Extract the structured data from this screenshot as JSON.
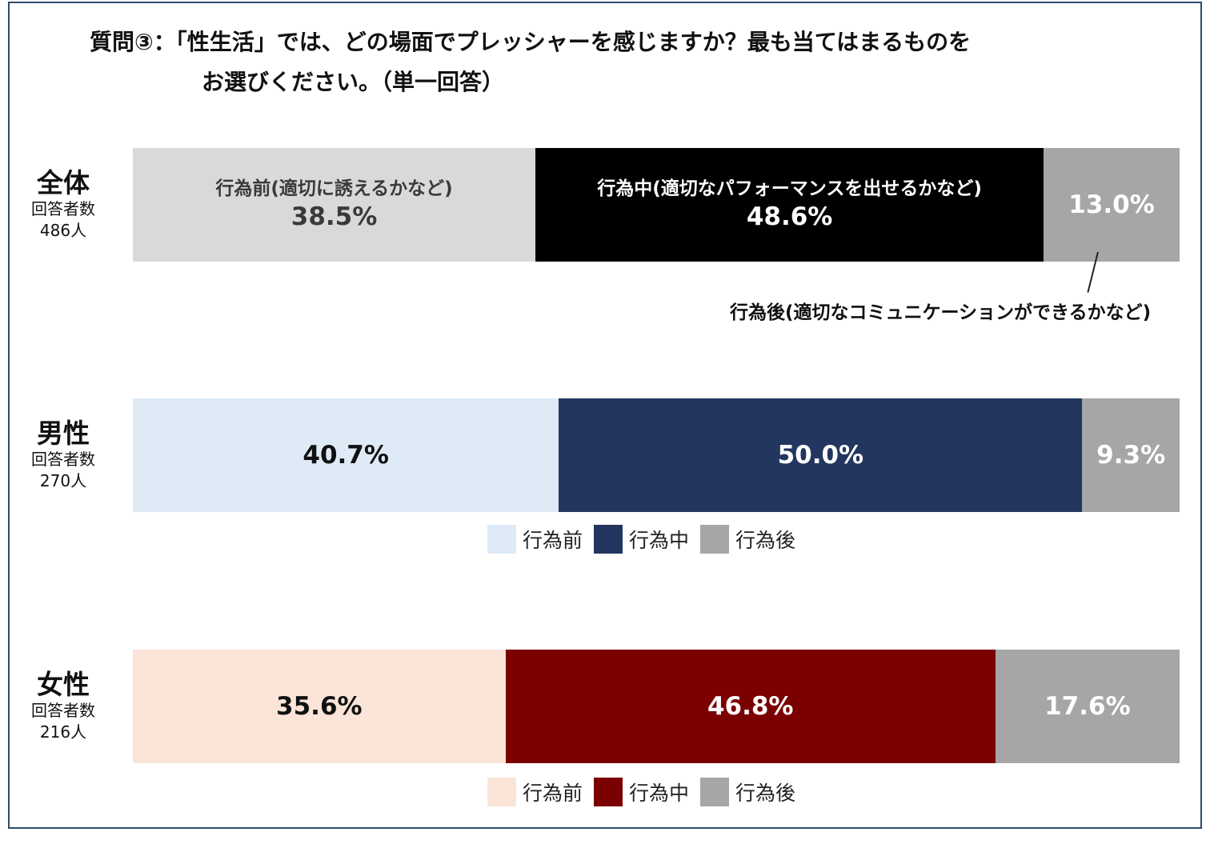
{
  "title": {
    "line1": "質問③：「性生活」では、どの場面でプレッシャーを感じますか？最も当てはまるものを",
    "line2": "お選びください。（単一回答）"
  },
  "chart_data": {
    "type": "bar",
    "orientation": "horizontal-stacked-100",
    "categories": [
      "行為前",
      "行為中",
      "行為後"
    ],
    "category_labels": [
      "行為前(適切に誘えるかなど)",
      "行為中(適切なパフォーマンスを出せるかなど)",
      "行為後(適切なコミュニケーションができるかなど)"
    ],
    "rows": [
      {
        "group": "全体",
        "respondents_label": "回答者数",
        "respondents": "486人",
        "values": [
          38.5,
          48.6,
          13.0
        ],
        "value_labels": [
          "38.5%",
          "48.6%",
          "13.0%"
        ],
        "colors": [
          "#d9d9d9",
          "#000000",
          "#a6a6a6"
        ],
        "text_colors": [
          "#3a3a3a",
          "#ffffff",
          "#ffffff"
        ]
      },
      {
        "group": "男性",
        "respondents_label": "回答者数",
        "respondents": "270人",
        "values": [
          40.7,
          50.0,
          9.3
        ],
        "value_labels": [
          "40.7%",
          "50.0%",
          "9.3%"
        ],
        "colors": [
          "#deeaf6",
          "#22365f",
          "#a6a6a6"
        ],
        "text_colors": [
          "#111111",
          "#ffffff",
          "#ffffff"
        ]
      },
      {
        "group": "女性",
        "respondents_label": "回答者数",
        "respondents": "216人",
        "values": [
          35.6,
          46.8,
          17.6
        ],
        "value_labels": [
          "35.6%",
          "46.8%",
          "17.6%"
        ],
        "colors": [
          "#fbe4d8",
          "#7b0000",
          "#a6a6a6"
        ],
        "text_colors": [
          "#111111",
          "#ffffff",
          "#ffffff"
        ]
      }
    ],
    "legends": [
      {
        "items": [
          "行為前",
          "行為中",
          "行為後"
        ],
        "colors": [
          "#deeaf6",
          "#22365f",
          "#a6a6a6"
        ]
      },
      {
        "items": [
          "行為前",
          "行為中",
          "行為後"
        ],
        "colors": [
          "#fbe4d8",
          "#7b0000",
          "#a6a6a6"
        ]
      }
    ],
    "xlim": [
      0,
      100
    ],
    "grid": false
  }
}
